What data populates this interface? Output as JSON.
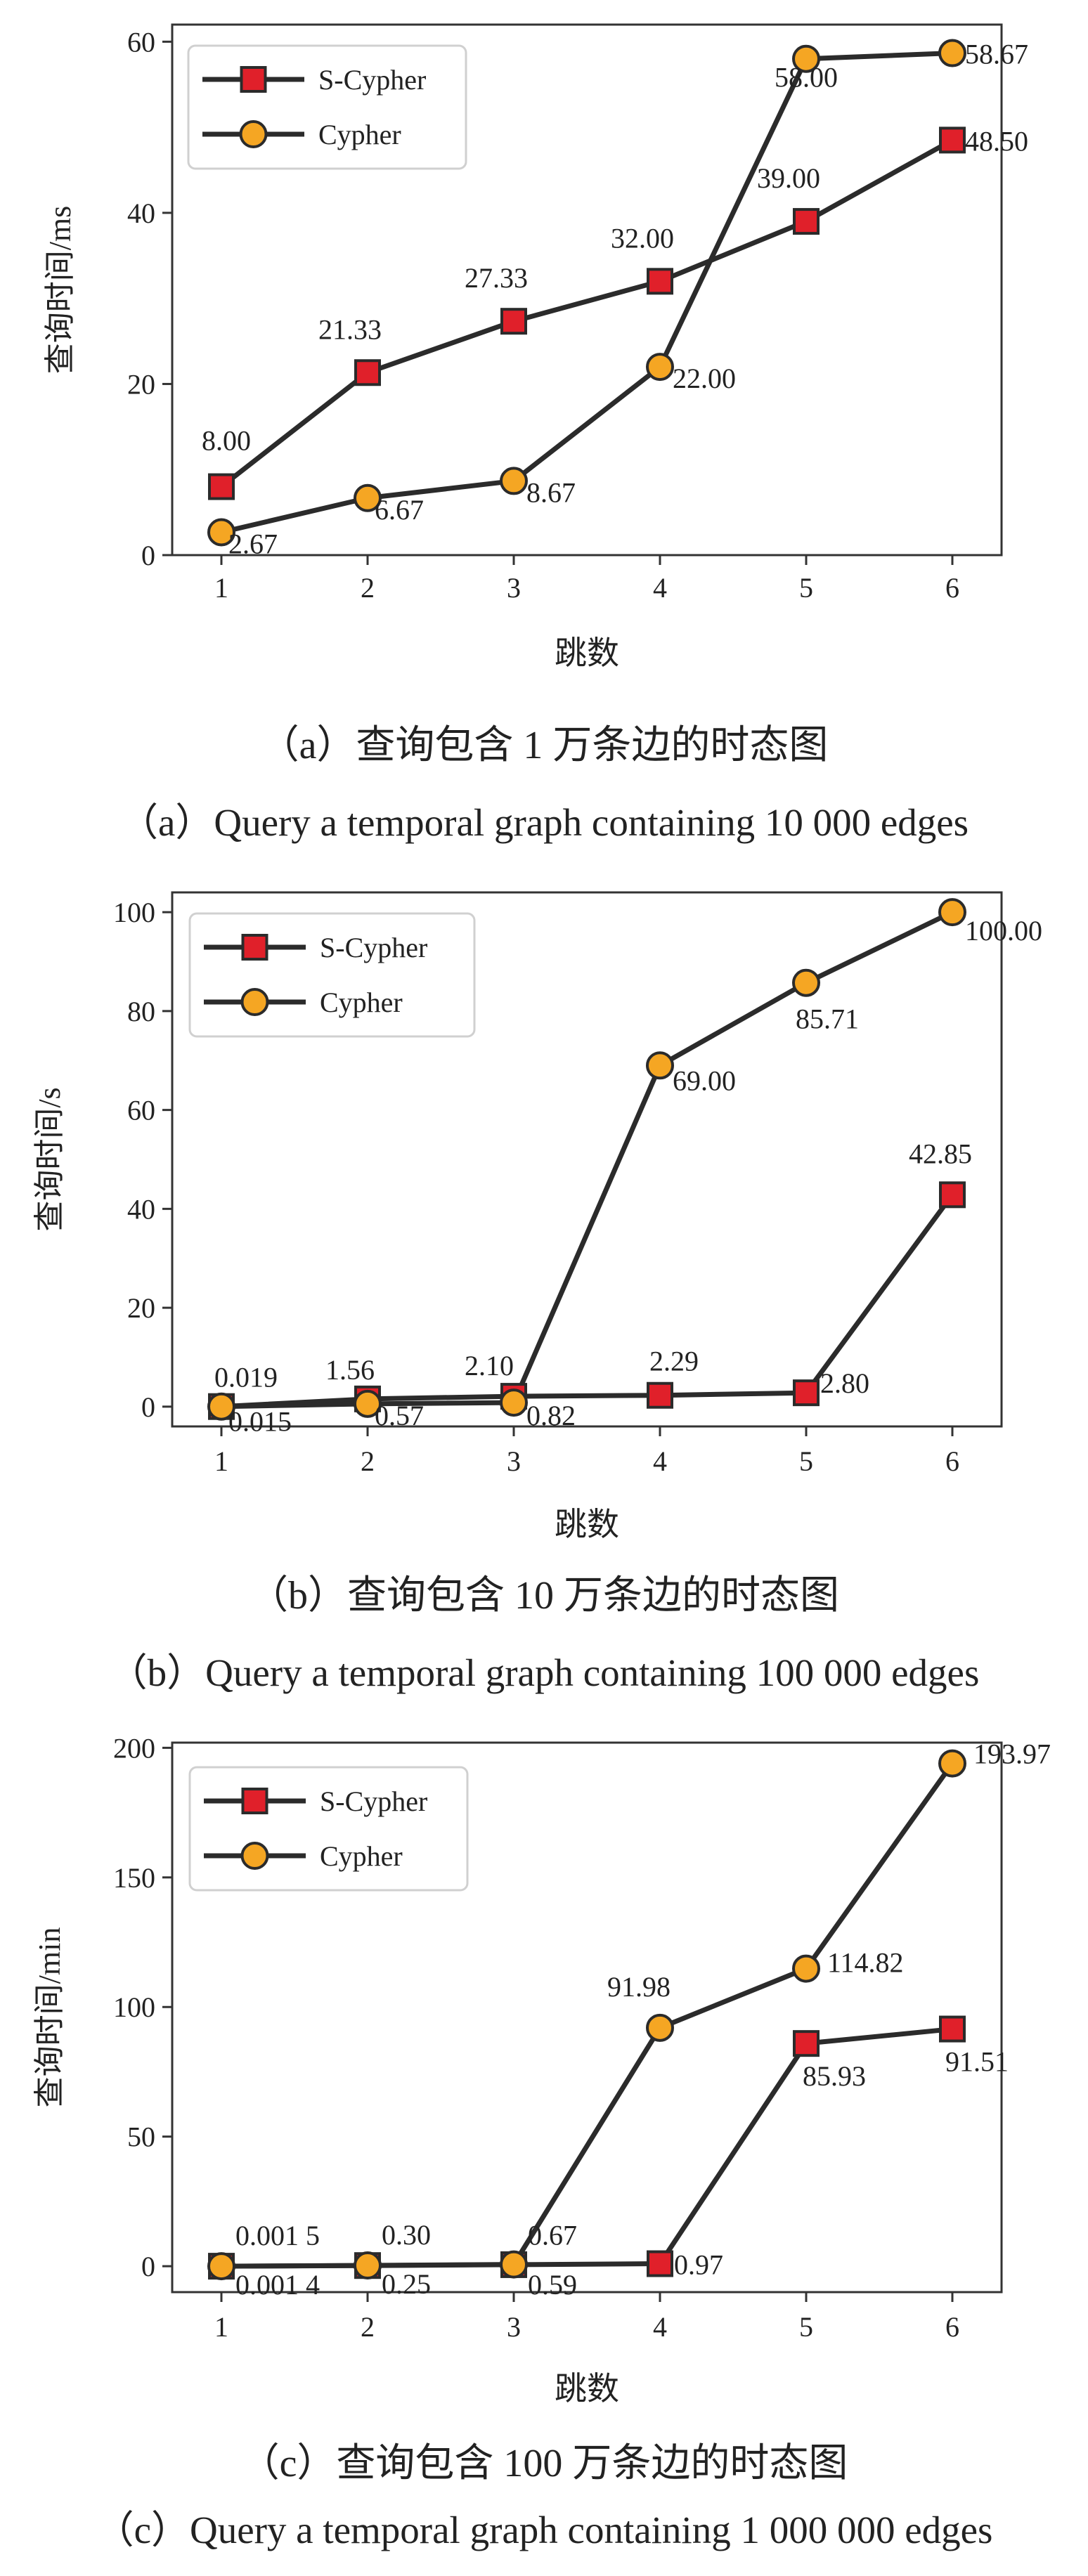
{
  "chart_data": [
    {
      "type": "line",
      "caption_cn": "（a）查询包含 1 万条边的时态图",
      "caption_en": "（a）Query a temporal graph containing 10 000 edges",
      "xlabel": "跳数",
      "ylabel": "查询时间/ms",
      "categories": [
        "1",
        "2",
        "3",
        "4",
        "5",
        "6"
      ],
      "ylim": [
        0,
        62
      ],
      "yticks": [
        0,
        20,
        40,
        60
      ],
      "ytick_labels": [
        "0",
        "20",
        "40",
        "60"
      ],
      "legend_position": "top-left",
      "series": [
        {
          "name": "S-Cypher",
          "marker": "square",
          "color": "#e0202a",
          "values": [
            8.0,
            21.33,
            27.33,
            32.0,
            39.0,
            48.5
          ],
          "labels": [
            "8.00",
            "21.33",
            "27.33",
            "32.00",
            "39.00",
            "48.50"
          ]
        },
        {
          "name": "Cypher",
          "marker": "circle",
          "color": "#f5a623",
          "values": [
            2.67,
            6.67,
            8.67,
            22.0,
            58.0,
            58.67
          ],
          "labels": [
            "2.67",
            "6.67",
            "8.67",
            "22.00",
            "58.00",
            "58.67"
          ]
        }
      ]
    },
    {
      "type": "line",
      "caption_cn": "（b）查询包含 10 万条边的时态图",
      "caption_en": "（b）Query a temporal graph containing 100 000 edges",
      "xlabel": "跳数",
      "ylabel": "查询时间/s",
      "categories": [
        "1",
        "2",
        "3",
        "4",
        "5",
        "6"
      ],
      "ylim": [
        -4,
        104
      ],
      "yticks": [
        0,
        20,
        40,
        60,
        80,
        100
      ],
      "ytick_labels": [
        "0",
        "20",
        "40",
        "60",
        "80",
        "100"
      ],
      "legend_position": "top-left",
      "series": [
        {
          "name": "S-Cypher",
          "marker": "square",
          "color": "#e0202a",
          "values": [
            0.019,
            1.56,
            2.1,
            2.29,
            2.8,
            42.85
          ],
          "labels": [
            "0.019",
            "1.56",
            "2.10",
            "2.29",
            "2.80",
            "42.85"
          ]
        },
        {
          "name": "Cypher",
          "marker": "circle",
          "color": "#f5a623",
          "values": [
            0.015,
            0.57,
            0.82,
            69.0,
            85.71,
            100.0
          ],
          "labels": [
            "0.015",
            "0.57",
            "0.82",
            "69.00",
            "85.71",
            "100.00"
          ]
        }
      ]
    },
    {
      "type": "line",
      "caption_cn": "（c）查询包含 100 万条边的时态图",
      "caption_en": "（c）Query a temporal graph containing 1 000 000 edges",
      "xlabel": "跳数",
      "ylabel": "查询时间/min",
      "categories": [
        "1",
        "2",
        "3",
        "4",
        "5",
        "6"
      ],
      "ylim": [
        -10,
        202
      ],
      "yticks": [
        0,
        50,
        100,
        150,
        200
      ],
      "ytick_labels": [
        "0",
        "50",
        "100",
        "150",
        "200"
      ],
      "legend_position": "top-left",
      "series": [
        {
          "name": "S-Cypher",
          "marker": "square",
          "color": "#e0202a",
          "values": [
            0.0014,
            0.25,
            0.59,
            0.97,
            85.93,
            91.51
          ],
          "labels": [
            "0.001 4",
            "0.25",
            "0.59",
            "0.97",
            "85.93",
            "91.51"
          ]
        },
        {
          "name": "Cypher",
          "marker": "circle",
          "color": "#f5a623",
          "values": [
            0.0015,
            0.3,
            0.67,
            91.98,
            114.82,
            193.97
          ],
          "labels": [
            "0.001 5",
            "0.30",
            "0.67",
            "91.98",
            "114.82",
            "193.97"
          ]
        }
      ]
    }
  ]
}
